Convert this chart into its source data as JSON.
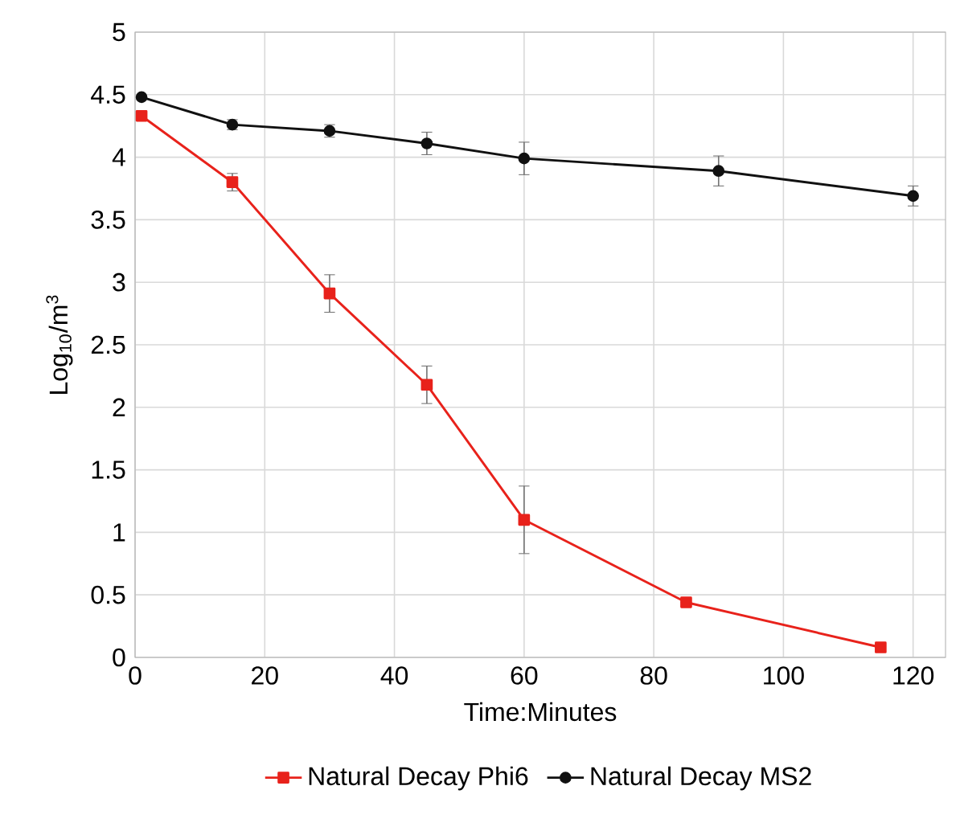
{
  "chart_data": {
    "type": "line",
    "xlabel": "Time:Minutes",
    "ylabel": "Log$_{10}$/m$^{3}$",
    "xlim": [
      0,
      125
    ],
    "xticks": [
      0,
      20,
      40,
      60,
      80,
      100,
      120
    ],
    "ylim": [
      0,
      5
    ],
    "yticks": [
      0,
      0.5,
      1,
      1.5,
      2,
      2.5,
      3,
      3.5,
      4,
      4.5,
      5
    ],
    "grid": true,
    "legend": "bottom",
    "series": [
      {
        "name": "Natural Decay Phi6",
        "color": "#e8221b",
        "marker": "square",
        "x": [
          1,
          15,
          30,
          45,
          60,
          85,
          115
        ],
        "values": [
          4.33,
          3.8,
          2.91,
          2.18,
          1.1,
          0.44,
          0.08
        ],
        "errors": [
          null,
          0.07,
          0.15,
          0.15,
          0.27,
          null,
          null
        ]
      },
      {
        "name": "Natural Decay MS2",
        "color": "#111111",
        "marker": "circle",
        "x": [
          1,
          15,
          30,
          45,
          60,
          90,
          120
        ],
        "values": [
          4.48,
          4.26,
          4.21,
          4.11,
          3.99,
          3.89,
          3.69
        ],
        "errors": [
          null,
          0.04,
          0.05,
          0.09,
          0.13,
          0.12,
          0.08
        ]
      }
    ]
  }
}
